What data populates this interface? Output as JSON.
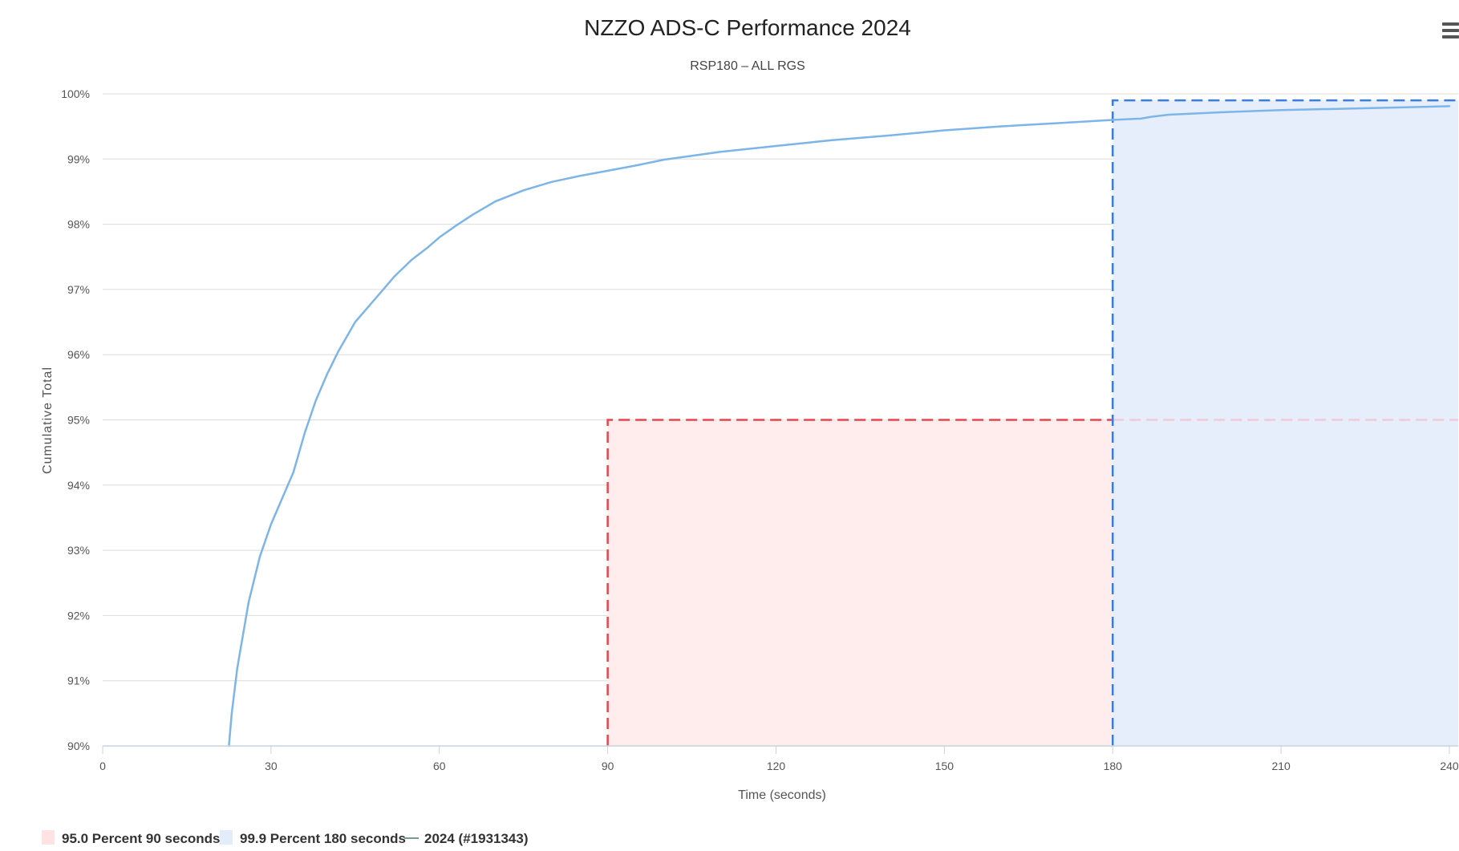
{
  "chart_data": {
    "type": "line",
    "title": "NZZO ADS-C Performance 2024",
    "subtitle": "RSP180 – ALL RGS",
    "xlabel": "Time (seconds)",
    "ylabel": "Cumulative Total",
    "xlim": [
      0,
      240
    ],
    "ylim": [
      90,
      100
    ],
    "x_ticks": [
      0,
      30,
      60,
      90,
      120,
      150,
      180,
      210,
      240
    ],
    "y_ticks": [
      90,
      91,
      92,
      93,
      94,
      95,
      96,
      97,
      98,
      99,
      100
    ],
    "y_tick_labels": [
      "90%",
      "91%",
      "92%",
      "93%",
      "94%",
      "95%",
      "96%",
      "97%",
      "98%",
      "99%",
      "100%"
    ],
    "grid": "horizontal",
    "legend_position": "bottom-left",
    "regions": [
      {
        "name": "95.0 Percent 90 seconds",
        "x_start": 90,
        "x_end": 240,
        "y_top": 95.0,
        "fill": "#ffecec",
        "line_color": "#e8454f"
      },
      {
        "name": "99.9 Percent 180 seconds",
        "x_start": 180,
        "x_end": 240,
        "y_top": 99.9,
        "fill": "#e6eefc",
        "line_color": "#3d7dd8"
      }
    ],
    "series": [
      {
        "name": "2024 (#1931343)",
        "color": "#7db5e8",
        "x": [
          22.5,
          23,
          24,
          25,
          26,
          28,
          30,
          32,
          34,
          36,
          38,
          40,
          42,
          45,
          48,
          50,
          52,
          55,
          58,
          60,
          63,
          66,
          70,
          75,
          80,
          85,
          90,
          95,
          100,
          105,
          110,
          120,
          130,
          140,
          150,
          160,
          170,
          180,
          185,
          187,
          190,
          200,
          210,
          220,
          230,
          240
        ],
        "y": [
          90.0,
          90.5,
          91.2,
          91.7,
          92.2,
          92.9,
          93.4,
          93.8,
          94.2,
          94.8,
          95.3,
          95.7,
          96.05,
          96.5,
          96.8,
          97.0,
          97.2,
          97.45,
          97.65,
          97.8,
          97.98,
          98.15,
          98.35,
          98.52,
          98.65,
          98.74,
          98.82,
          98.9,
          98.99,
          99.05,
          99.11,
          99.2,
          99.29,
          99.36,
          99.44,
          99.5,
          99.55,
          99.6,
          99.62,
          99.65,
          99.68,
          99.72,
          99.75,
          99.77,
          99.79,
          99.81
        ]
      }
    ]
  },
  "legend": {
    "items": [
      {
        "label": "95.0 Percent 90 seconds",
        "swatch": "#ffe3e3",
        "kind": "box"
      },
      {
        "label": "99.9 Percent 180 seconds",
        "swatch": "#e3ecfa",
        "kind": "box"
      },
      {
        "label": "2024 (#1931343)",
        "swatch": "#6fa8dc",
        "kind": "line"
      }
    ]
  },
  "toolbar": {
    "menu_icon": "hamburger-menu-icon"
  }
}
